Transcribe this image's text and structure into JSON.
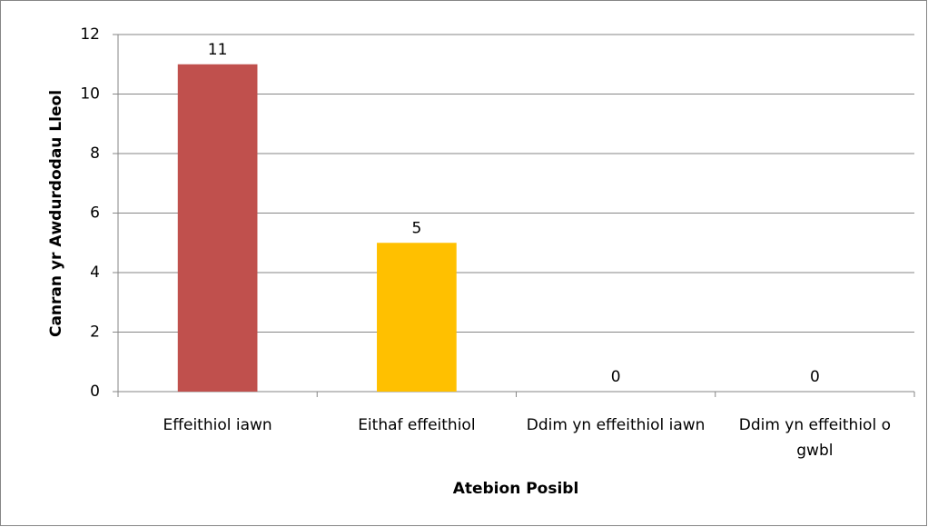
{
  "chart_data": {
    "type": "bar",
    "x_label": "Atebion Posibl",
    "y_label": "Canran yr Awdurdodau Lleol",
    "categories": [
      "Effeithiol iawn",
      "Eithaf effeithiol",
      "Ddim yn effeithiol iawn",
      "Ddim yn effeithiol o gwbl"
    ],
    "values": [
      11,
      5,
      0,
      0
    ],
    "colors": [
      "#c0504d",
      "#ffc000",
      "#9bbb59",
      "#8064a2"
    ],
    "ylim": [
      0,
      12
    ],
    "yticks": [
      0,
      2,
      4,
      6,
      8,
      10,
      12
    ],
    "grid": true
  }
}
